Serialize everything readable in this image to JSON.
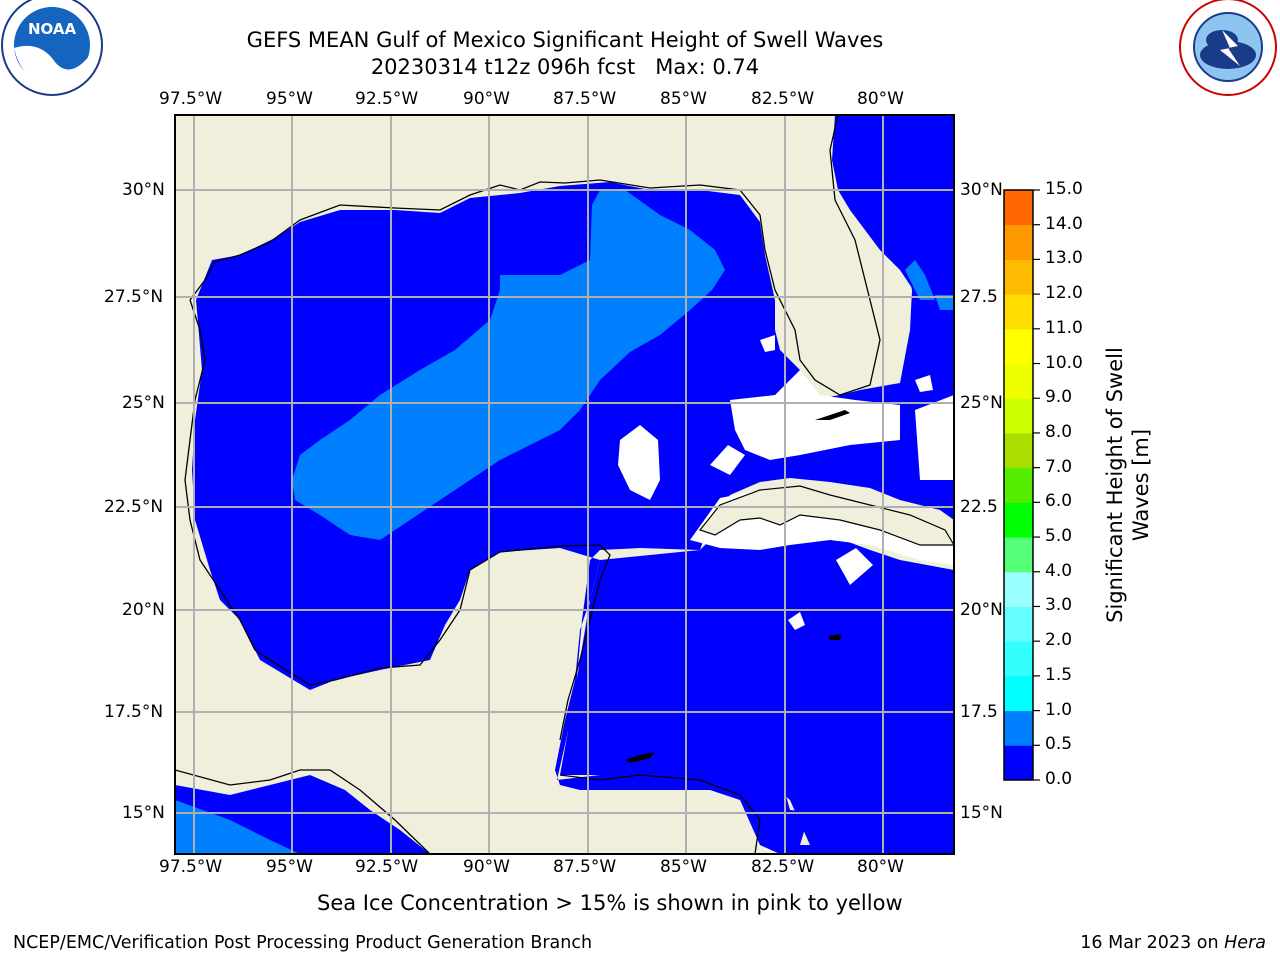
{
  "header": {
    "title_line1": "GEFS MEAN Gulf of Mexico Significant Height of Swell Waves",
    "title_line2": "20230314 t12z 096h fcst   Max: 0.74"
  },
  "logos": {
    "left": "NOAA",
    "left_ring": "NATIONAL OCEANIC AND ATMOSPHERIC ADMINISTRATION · U.S. DEPARTMENT OF COMMERCE",
    "right_ring": "NATIONAL WEATHER SERVICE"
  },
  "axes": {
    "lon_ticks": [
      "97.5°W",
      "95°W",
      "92.5°W",
      "90°W",
      "87.5°W",
      "85°W",
      "82.5°W",
      "80°W"
    ],
    "lat_ticks_left": [
      "30°N",
      "27.5°N",
      "25°N",
      "22.5°N",
      "20°N",
      "17.5°N",
      "15°N"
    ],
    "lat_ticks_right": [
      "30°N",
      "27.5",
      "25°N",
      "22.5",
      "20°N",
      "17.5",
      "15°N"
    ]
  },
  "colorbar": {
    "label_line1": "Significant Height of Swell",
    "label_line2": "Waves [m]",
    "ticks": [
      "0.0",
      "0.5",
      "1.0",
      "1.5",
      "2.0",
      "3.0",
      "4.0",
      "5.0",
      "6.0",
      "7.0",
      "8.0",
      "9.0",
      "10.0",
      "11.0",
      "12.0",
      "13.0",
      "14.0",
      "15.0"
    ],
    "colors": [
      "#0000ff",
      "#0080ff",
      "#00ffff",
      "#33ffff",
      "#66ffff",
      "#99ffff",
      "#55ff77",
      "#00ff00",
      "#55ee00",
      "#aadd00",
      "#ccff00",
      "#eeff00",
      "#ffff00",
      "#ffdd00",
      "#ffbb00",
      "#ff9900",
      "#ff6600",
      "#ff3300",
      "#ff0000"
    ]
  },
  "map_colors": {
    "land": "#efefdc",
    "swell_low": "#0000ff",
    "swell_mid": "#0080ff",
    "grid": "#b0b0b0"
  },
  "note": "Sea Ice Concentration > 15% is shown in pink to yellow",
  "footer": {
    "left": "NCEP/EMC/Verification Post Processing Product Generation Branch",
    "right_date": "16 Mar 2023 on ",
    "right_host": "Hera"
  }
}
